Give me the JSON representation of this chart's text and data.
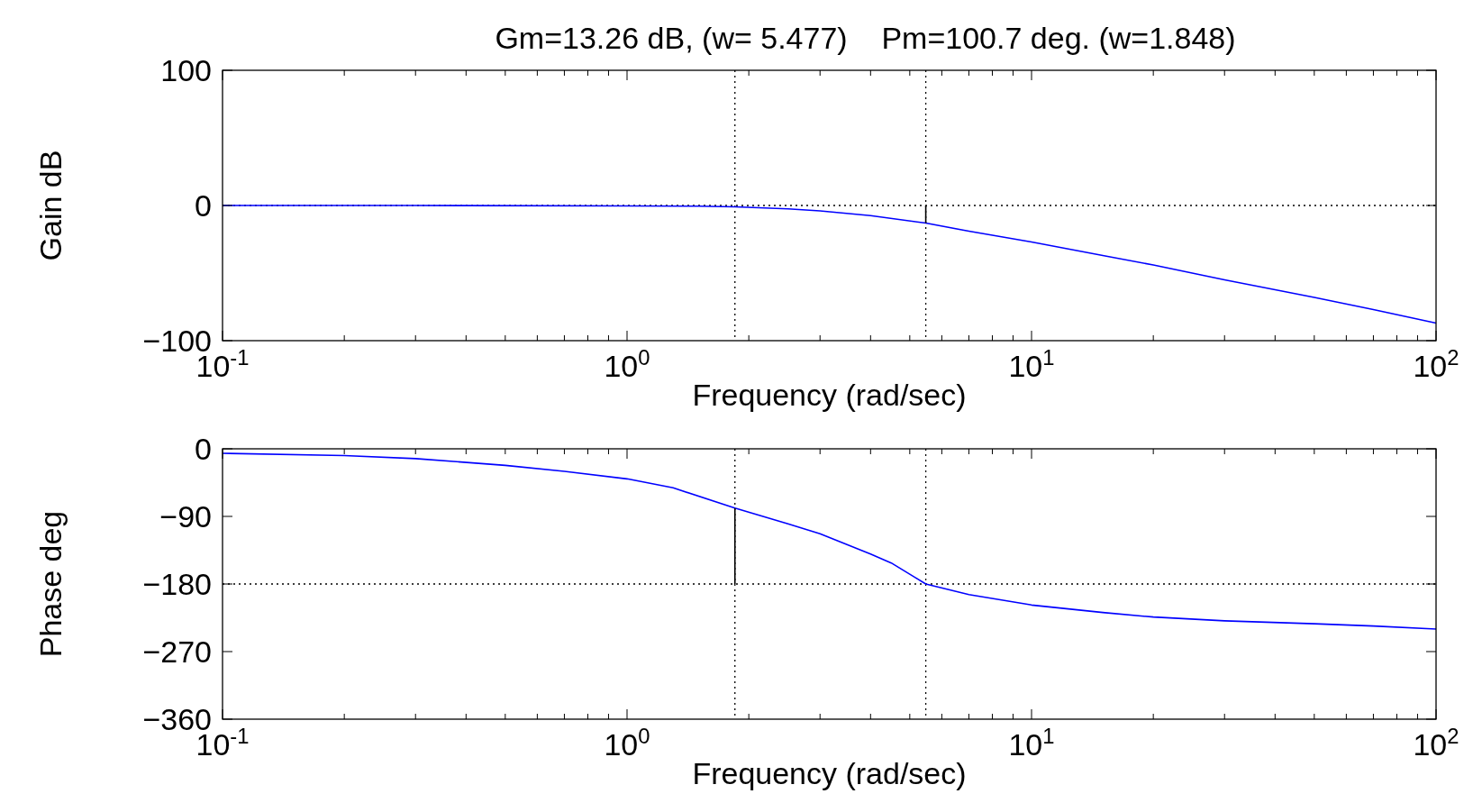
{
  "chart_data": [
    {
      "type": "line",
      "title": "Gm=13.26 dB, (w= 5.477)    Pm=100.7 deg. (w=1.848)",
      "xlabel": "Frequency (rad/sec)",
      "ylabel": "Gain dB",
      "log": "x",
      "grid": false,
      "marker": "none",
      "line_style": "solid",
      "xlim": [
        0.1,
        100
      ],
      "ylim": [
        -100,
        100
      ],
      "yticks": [
        -100,
        0,
        100
      ],
      "xticks": [
        {
          "value": 0.1,
          "label": "10$^{-1}$"
        },
        {
          "value": 0.2,
          "label": null
        },
        {
          "value": 0.3,
          "label": null
        },
        {
          "value": 0.4,
          "label": null
        },
        {
          "value": 0.5,
          "label": null
        },
        {
          "value": 0.6,
          "label": null
        },
        {
          "value": 0.7,
          "label": null
        },
        {
          "value": 0.8,
          "label": null
        },
        {
          "value": 0.9,
          "label": null
        },
        {
          "value": 1,
          "label": "10$^{0}$"
        },
        {
          "value": 2,
          "label": null
        },
        {
          "value": 3,
          "label": null
        },
        {
          "value": 4,
          "label": null
        },
        {
          "value": 5,
          "label": null
        },
        {
          "value": 6,
          "label": null
        },
        {
          "value": 7,
          "label": null
        },
        {
          "value": 8,
          "label": null
        },
        {
          "value": 9,
          "label": null
        },
        {
          "value": 10,
          "label": "10$^{1}$"
        },
        {
          "value": 20,
          "label": null
        },
        {
          "value": 30,
          "label": null
        },
        {
          "value": 40,
          "label": null
        },
        {
          "value": 50,
          "label": null
        },
        {
          "value": 60,
          "label": null
        },
        {
          "value": 70,
          "label": null
        },
        {
          "value": 80,
          "label": null
        },
        {
          "value": 90,
          "label": null
        },
        {
          "value": 100,
          "label": "10$^{2}$"
        }
      ],
      "ref_lines": [
        {
          "axis": "x",
          "value": 1.848,
          "color": "#000000",
          "line_style": "dotted"
        },
        {
          "axis": "x",
          "value": 5.477,
          "color": "#000000",
          "line_style": "dotted"
        },
        {
          "axis": "y",
          "value": 0,
          "color": "#000000",
          "line_style": "dotted"
        }
      ],
      "series": [
        {
          "color": "#0000ff",
          "x": [
            0.1,
            0.3,
            1,
            1.5,
            1.848,
            2.5,
            3,
            4,
            5.477,
            7,
            10,
            15,
            20,
            30,
            50,
            70,
            100
          ],
          "values": [
            0,
            0,
            -0.3,
            -0.5,
            -1,
            -2.5,
            -4,
            -7.5,
            -13,
            -19,
            -27,
            -37,
            -44,
            -55,
            -68,
            -77,
            -87
          ]
        },
        {
          "color": "#000000",
          "x": [
            5.477,
            5.477
          ],
          "values": [
            0,
            -13
          ]
        }
      ]
    },
    {
      "type": "line",
      "xlabel": "Frequency (rad/sec)",
      "ylabel": "Phase deg",
      "log": "x",
      "grid": false,
      "marker": "none",
      "line_style": "solid",
      "xlim": [
        0.1,
        100
      ],
      "ylim": [
        -360,
        0
      ],
      "yticks": [
        -360,
        -270,
        -180,
        -90,
        0
      ],
      "xticks": [
        {
          "value": 0.1,
          "label": "10$^{-1}$"
        },
        {
          "value": 0.2,
          "label": null
        },
        {
          "value": 0.3,
          "label": null
        },
        {
          "value": 0.4,
          "label": null
        },
        {
          "value": 0.5,
          "label": null
        },
        {
          "value": 0.6,
          "label": null
        },
        {
          "value": 0.7,
          "label": null
        },
        {
          "value": 0.8,
          "label": null
        },
        {
          "value": 0.9,
          "label": null
        },
        {
          "value": 1,
          "label": "10$^{0}$"
        },
        {
          "value": 2,
          "label": null
        },
        {
          "value": 3,
          "label": null
        },
        {
          "value": 4,
          "label": null
        },
        {
          "value": 5,
          "label": null
        },
        {
          "value": 6,
          "label": null
        },
        {
          "value": 7,
          "label": null
        },
        {
          "value": 8,
          "label": null
        },
        {
          "value": 9,
          "label": null
        },
        {
          "value": 10,
          "label": "10$^{1}$"
        },
        {
          "value": 20,
          "label": null
        },
        {
          "value": 30,
          "label": null
        },
        {
          "value": 40,
          "label": null
        },
        {
          "value": 50,
          "label": null
        },
        {
          "value": 60,
          "label": null
        },
        {
          "value": 70,
          "label": null
        },
        {
          "value": 80,
          "label": null
        },
        {
          "value": 90,
          "label": null
        },
        {
          "value": 100,
          "label": "10$^{2}$"
        }
      ],
      "ref_lines": [
        {
          "axis": "x",
          "value": 1.848,
          "color": "#000000",
          "line_style": "dotted"
        },
        {
          "axis": "x",
          "value": 5.477,
          "color": "#000000",
          "line_style": "dotted"
        },
        {
          "axis": "y",
          "value": -180,
          "color": "#000000",
          "line_style": "dotted"
        }
      ],
      "series": [
        {
          "color": "#0000ff",
          "x": [
            0.1,
            0.2,
            0.3,
            0.5,
            0.7,
            1,
            1.3,
            1.848,
            2.5,
            3,
            4,
            4.5,
            5.477,
            7,
            10,
            15,
            20,
            30,
            50,
            70,
            100
          ],
          "values": [
            -6,
            -9,
            -13,
            -22,
            -30,
            -40,
            -52,
            -79,
            -100,
            -113,
            -140,
            -152,
            -180,
            -194,
            -208,
            -218,
            -224,
            -229,
            -233,
            -236,
            -240
          ]
        },
        {
          "color": "#000000",
          "x": [
            1.848,
            1.848
          ],
          "values": [
            -180,
            -79
          ]
        }
      ]
    }
  ]
}
